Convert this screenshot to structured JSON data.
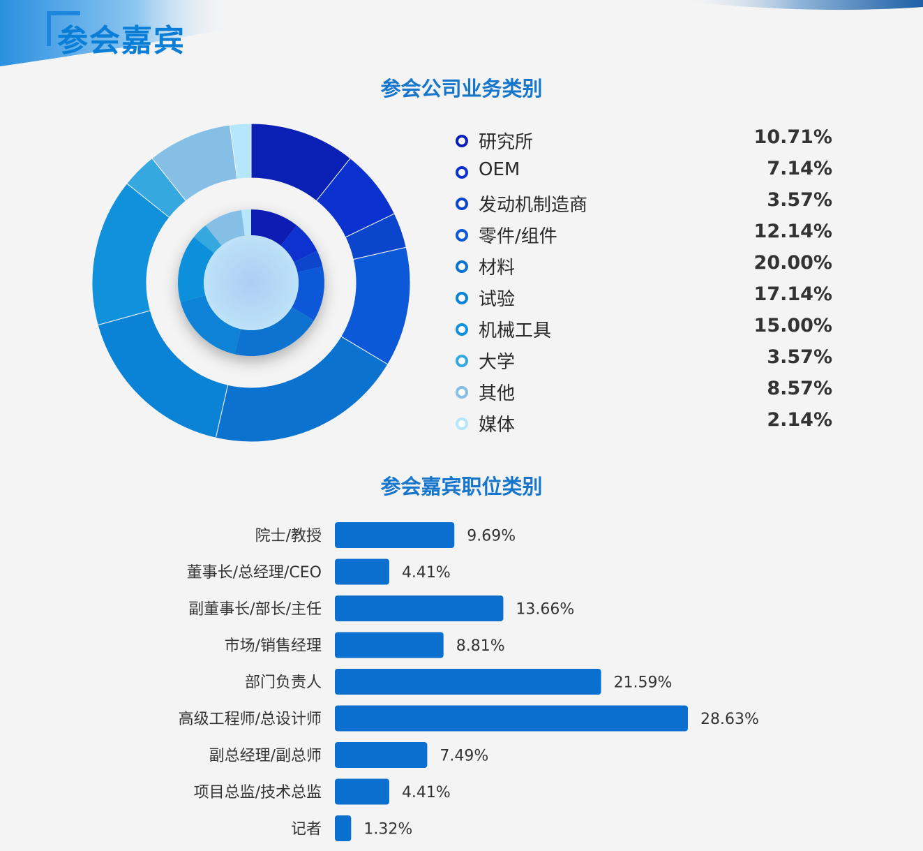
{
  "header": {
    "title": "参会嘉宾"
  },
  "charts_text": {
    "business_title": "参会公司业务类别",
    "position_title": "参会嘉宾职位类别"
  },
  "colors": {
    "accent": "#0a7ed6",
    "bar": "#0b6fd0",
    "business": [
      "#0a1fb3",
      "#0b32cf",
      "#0a45cc",
      "#0b58d8",
      "#0b72d0",
      "#0a82d6",
      "#1190dc",
      "#36a8e0",
      "#86bfe6",
      "#b6e6fb"
    ]
  },
  "chart_data": [
    {
      "type": "pie",
      "title": "参会公司业务类别",
      "categories": [
        "研究所",
        "OEM",
        "发动机制造商",
        "零件/组件",
        "材料",
        "试验",
        "机械工具",
        "大学",
        "其他",
        "媒体"
      ],
      "values": [
        10.71,
        7.14,
        3.57,
        12.14,
        20.0,
        17.14,
        15.0,
        3.57,
        8.57,
        2.14
      ],
      "value_labels": [
        "10.71%",
        "7.14%",
        "3.57%",
        "12.14%",
        "20.00%",
        "17.14%",
        "15.00%",
        "3.57%",
        "8.57%",
        "2.14%"
      ],
      "legend": "right"
    },
    {
      "type": "bar",
      "orientation": "horizontal",
      "title": "参会嘉宾职位类别",
      "categories": [
        "院士/教授",
        "董事长/总经理/CEO",
        "副董事长/部长/主任",
        "市场/销售经理",
        "部门负责人",
        "高级工程师/总设计师",
        "副总经理/副总师",
        "项目总监/技术总监",
        "记者"
      ],
      "values": [
        9.69,
        4.41,
        13.66,
        8.81,
        21.59,
        28.63,
        7.49,
        4.41,
        1.32
      ],
      "value_labels": [
        "9.69%",
        "4.41%",
        "13.66%",
        "8.81%",
        "21.59%",
        "28.63%",
        "7.49%",
        "4.41%",
        "1.32%"
      ]
    }
  ]
}
